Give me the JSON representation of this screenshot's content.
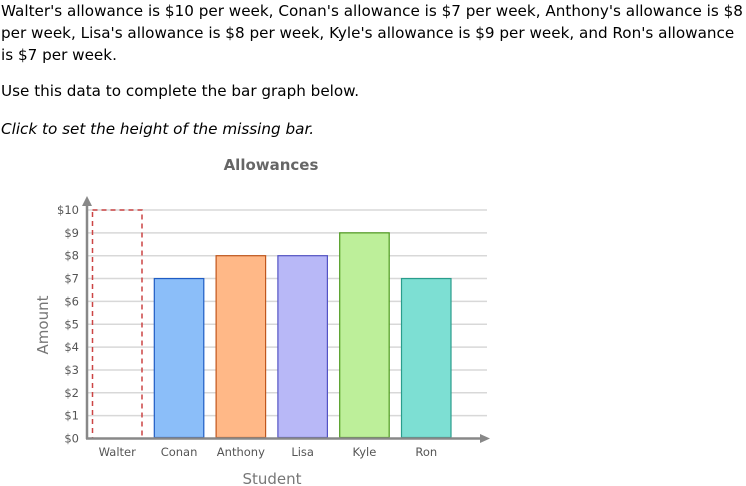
{
  "prompt": {
    "data_statement": "Walter's allowance is $10 per week, Conan's allowance is $7 per week, Anthony's allowance is $8 per week, Lisa's allowance is $8 per week, Kyle's allowance is $9 per week, and Ron's allowance is $7 per week.",
    "instruction": "Use this data to complete the bar graph below.",
    "hint": "Click to set the height of the missing bar."
  },
  "chart_data": {
    "type": "bar",
    "title": "Allowances",
    "xlabel": "Student",
    "ylabel": "Amount",
    "categories": [
      "Walter",
      "Conan",
      "Anthony",
      "Lisa",
      "Kyle",
      "Ron"
    ],
    "values": [
      10,
      7,
      8,
      8,
      9,
      7
    ],
    "missing_bar": "Walter",
    "ylim": [
      0,
      10
    ],
    "yticks": [
      "$0",
      "$1",
      "$2",
      "$3",
      "$4",
      "$5",
      "$6",
      "$7",
      "$8",
      "$9",
      "$10"
    ],
    "grid": true,
    "colors": {
      "Conan": {
        "fill": "#8bbef9",
        "stroke": "#1f5cc4"
      },
      "Anthony": {
        "fill": "#ffb887",
        "stroke": "#c0561c"
      },
      "Lisa": {
        "fill": "#b8b8f7",
        "stroke": "#5353c4"
      },
      "Kyle": {
        "fill": "#bdef9a",
        "stroke": "#4e9a1e"
      },
      "Ron": {
        "fill": "#7ddfd3",
        "stroke": "#2a9d8c"
      },
      "Walter_placeholder": {
        "stroke": "#cc4444",
        "dash": true
      }
    }
  }
}
